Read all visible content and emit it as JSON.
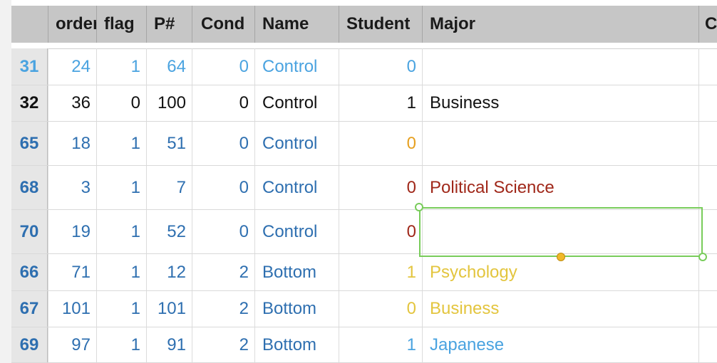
{
  "columns": [
    "",
    "order",
    "flag",
    "P#",
    "Cond",
    "Name",
    "Student",
    "Major",
    "C"
  ],
  "rows": [
    {
      "rowhead": "31",
      "order": "24",
      "flag": "1",
      "p": "64",
      "cond": "0",
      "name": "Control",
      "student": "0",
      "major": "",
      "style": "light",
      "student_style": "light"
    },
    {
      "rowhead": "32",
      "order": "36",
      "flag": "0",
      "p": "100",
      "cond": "0",
      "name": "Control",
      "student": "1",
      "major": "Business",
      "style": "black",
      "student_style": "black"
    },
    {
      "rowhead": "65",
      "order": "18",
      "flag": "1",
      "p": "51",
      "cond": "0",
      "name": "Control",
      "student": "0",
      "major": "",
      "style": "dark",
      "student_style": "orange"
    },
    {
      "rowhead": "68",
      "order": "3",
      "flag": "1",
      "p": "7",
      "cond": "0",
      "name": "Control",
      "student": "0",
      "major": "Political Science",
      "style": "dark",
      "student_style": "red"
    },
    {
      "rowhead": "70",
      "order": "19",
      "flag": "1",
      "p": "52",
      "cond": "0",
      "name": "Control",
      "student": "0",
      "major": "",
      "style": "dark",
      "student_style": "red"
    },
    {
      "rowhead": "66",
      "order": "71",
      "flag": "1",
      "p": "12",
      "cond": "2",
      "name": "Bottom",
      "student": "1",
      "major": "Psychology",
      "style": "dark",
      "student_style": "yellow"
    },
    {
      "rowhead": "67",
      "order": "101",
      "flag": "1",
      "p": "101",
      "cond": "2",
      "name": "Bottom",
      "student": "0",
      "major": "Business",
      "style": "dark",
      "student_style": "yellow"
    },
    {
      "rowhead": "69",
      "order": "97",
      "flag": "1",
      "p": "91",
      "cond": "2",
      "name": "Bottom",
      "student": "1",
      "major": "Japanese",
      "style": "dark",
      "student_style": "light"
    }
  ],
  "colors": {
    "light_blue": "#4aa3e0",
    "dark_blue": "#2e6fb0",
    "orange": "#e6a020",
    "red": "#a0281a",
    "yellow": "#e3c53e",
    "selection_green": "#78cc5a",
    "header_bg": "#c6c6c6"
  }
}
